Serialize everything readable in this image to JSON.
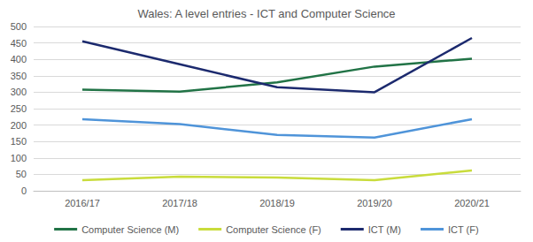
{
  "chart_data": {
    "type": "line",
    "title": "Wales: A level entries - ICT and Computer Science",
    "categories": [
      "2016/17",
      "2017/18",
      "2018/19",
      "2019/20",
      "2020/21"
    ],
    "series": [
      {
        "name": "Computer Science (M)",
        "color": "#217346",
        "values": [
          308,
          302,
          330,
          378,
          402
        ]
      },
      {
        "name": "Computer Science (F)",
        "color": "#c9dc3c",
        "values": [
          32,
          43,
          40,
          32,
          62
        ]
      },
      {
        "name": "ICT (M)",
        "color": "#1c2a6e",
        "values": [
          455,
          385,
          315,
          300,
          465
        ]
      },
      {
        "name": "ICT (F)",
        "color": "#4f94d9",
        "values": [
          218,
          203,
          170,
          162,
          218
        ]
      }
    ],
    "ylim": [
      0,
      500
    ],
    "yticks": [
      0,
      50,
      100,
      150,
      200,
      250,
      300,
      350,
      400,
      450,
      500
    ],
    "grid": true,
    "legend": "bottom"
  }
}
